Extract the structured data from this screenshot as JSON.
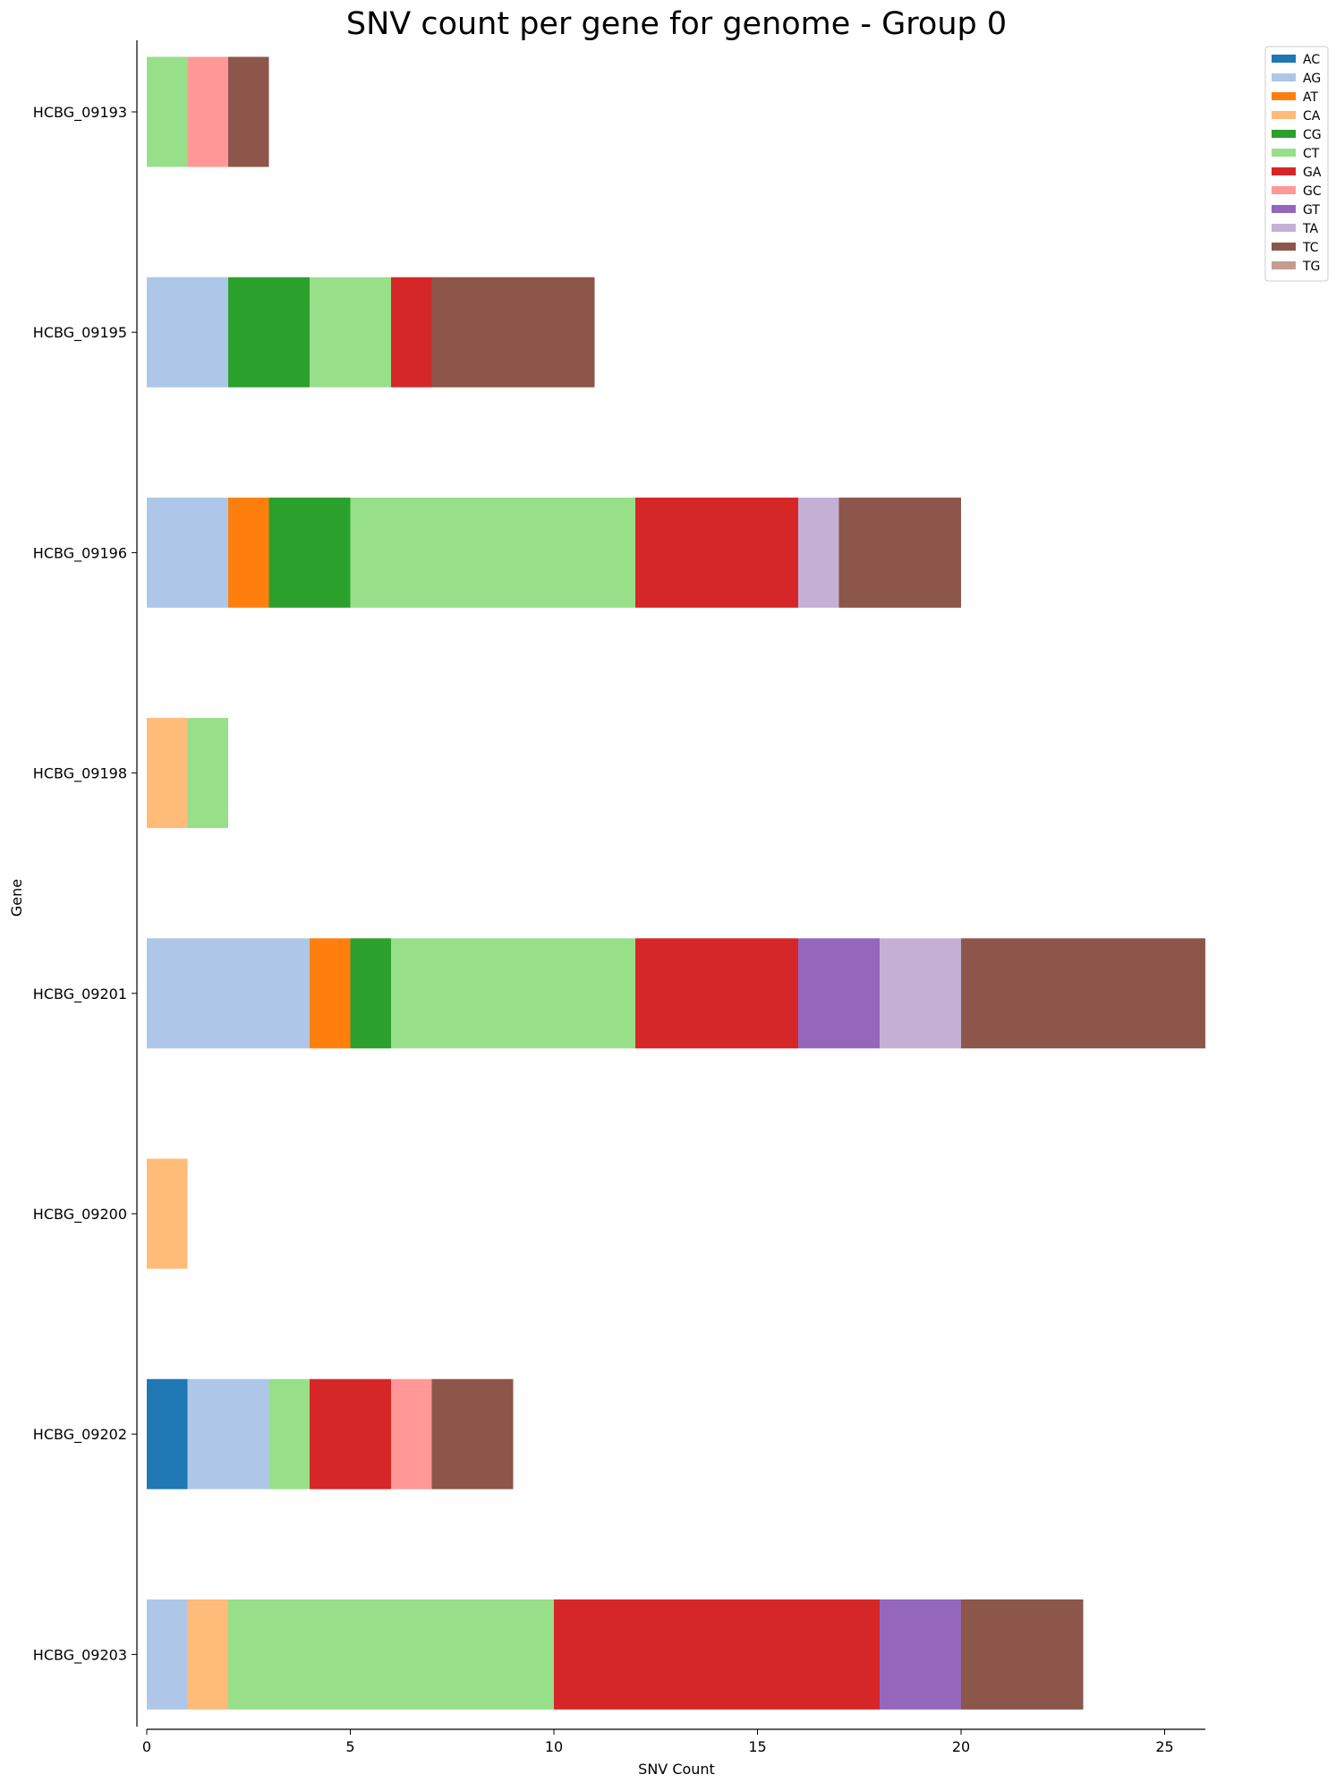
{
  "chart_data": {
    "type": "bar",
    "orientation": "horizontal",
    "stacked": true,
    "title": "SNV count per gene for genome - Group 0",
    "xlabel": "SNV Count",
    "ylabel": "Gene",
    "xlim": [
      0,
      26
    ],
    "xticks": [
      0,
      5,
      10,
      15,
      20,
      25
    ],
    "grid": false,
    "legend_position": "top-right",
    "categories": [
      "HCBG_09193",
      "HCBG_09195",
      "HCBG_09196",
      "HCBG_09198",
      "HCBG_09201",
      "HCBG_09200",
      "HCBG_09202",
      "HCBG_09203"
    ],
    "series": [
      {
        "name": "AC",
        "color": "#1f77b4",
        "values": [
          0,
          0,
          0,
          0,
          0,
          0,
          1,
          0
        ]
      },
      {
        "name": "AG",
        "color": "#aec7e8",
        "values": [
          0,
          2,
          2,
          0,
          4,
          0,
          2,
          1
        ]
      },
      {
        "name": "AT",
        "color": "#ff7f0e",
        "values": [
          0,
          0,
          1,
          0,
          1,
          0,
          0,
          0
        ]
      },
      {
        "name": "CA",
        "color": "#ffbb78",
        "values": [
          0,
          0,
          0,
          1,
          0,
          1,
          0,
          1
        ]
      },
      {
        "name": "CG",
        "color": "#2ca02c",
        "values": [
          0,
          2,
          2,
          0,
          1,
          0,
          0,
          0
        ]
      },
      {
        "name": "CT",
        "color": "#98df8a",
        "values": [
          1,
          2,
          7,
          1,
          6,
          0,
          1,
          8
        ]
      },
      {
        "name": "GA",
        "color": "#d62728",
        "values": [
          0,
          1,
          4,
          0,
          4,
          0,
          2,
          8
        ]
      },
      {
        "name": "GC",
        "color": "#ff9896",
        "values": [
          1,
          0,
          0,
          0,
          0,
          0,
          1,
          0
        ]
      },
      {
        "name": "GT",
        "color": "#9467bd",
        "values": [
          0,
          0,
          0,
          0,
          2,
          0,
          0,
          2
        ]
      },
      {
        "name": "TA",
        "color": "#c5b0d5",
        "values": [
          0,
          0,
          1,
          0,
          2,
          0,
          0,
          0
        ]
      },
      {
        "name": "TC",
        "color": "#8c564b",
        "values": [
          1,
          4,
          3,
          0,
          6,
          0,
          2,
          3
        ]
      },
      {
        "name": "TG",
        "color": "#c49c94",
        "values": [
          0,
          0,
          0,
          0,
          0,
          0,
          0,
          0
        ]
      }
    ]
  }
}
